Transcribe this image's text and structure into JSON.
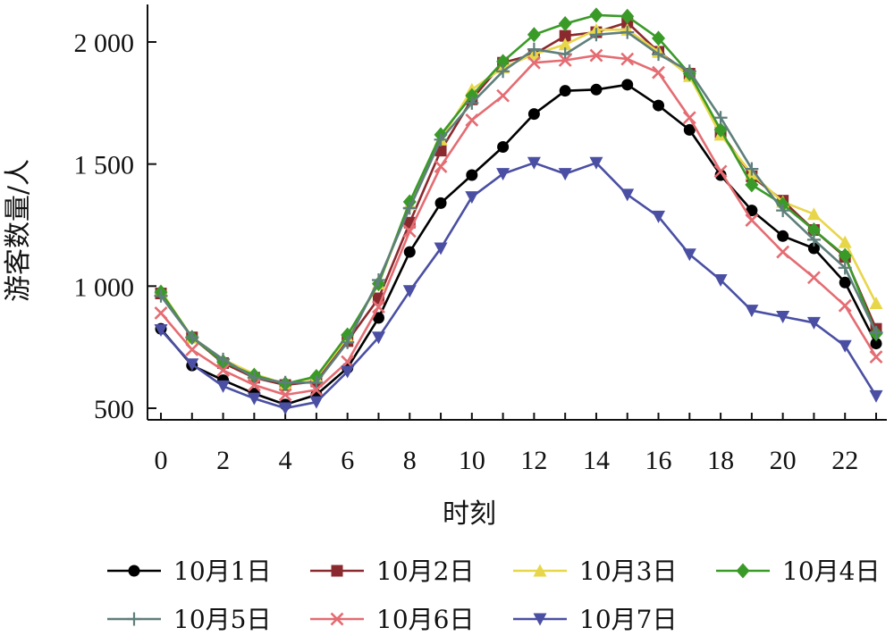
{
  "chart_data": {
    "type": "line",
    "title": "",
    "xlabel": "时刻",
    "ylabel": "游客数量/人",
    "xlim": [
      0,
      23
    ],
    "ylim": [
      460,
      2160
    ],
    "x": [
      0,
      1,
      2,
      3,
      4,
      5,
      6,
      7,
      8,
      9,
      10,
      11,
      12,
      13,
      14,
      15,
      16,
      17,
      18,
      19,
      20,
      21,
      22,
      23
    ],
    "x_ticks": [
      0,
      2,
      4,
      6,
      8,
      10,
      12,
      14,
      16,
      18,
      20,
      22
    ],
    "x_tick_labels": [
      "0",
      "2",
      "4",
      "6",
      "8",
      "10",
      "12",
      "14",
      "16",
      "18",
      "20",
      "22"
    ],
    "y_ticks": [
      500,
      1000,
      1500,
      2000
    ],
    "y_tick_labels": [
      "500",
      "1 000",
      "1 500",
      "2 000"
    ],
    "grid": false,
    "legend_position": "bottom",
    "series": [
      {
        "name": "10月1日",
        "color": "#000000",
        "marker": "circle",
        "values": [
          825,
          675,
          615,
          560,
          515,
          555,
          665,
          870,
          1140,
          1340,
          1455,
          1570,
          1705,
          1800,
          1805,
          1825,
          1740,
          1640,
          1455,
          1310,
          1205,
          1155,
          1015,
          765
        ]
      },
      {
        "name": "10月2日",
        "color": "#8B2A2E",
        "marker": "square",
        "values": [
          970,
          790,
          685,
          625,
          595,
          610,
          775,
          950,
          1260,
          1555,
          1765,
          1915,
          1950,
          2025,
          2040,
          2080,
          1960,
          1870,
          1630,
          1450,
          1350,
          1230,
          1120,
          825
        ]
      },
      {
        "name": "10月3日",
        "color": "#E8D64A",
        "marker": "triangle-up",
        "values": [
          980,
          790,
          700,
          640,
          600,
          625,
          790,
          1010,
          1335,
          1600,
          1805,
          1895,
          1950,
          1990,
          2050,
          2050,
          1960,
          1860,
          1620,
          1460,
          1345,
          1295,
          1180,
          930
        ]
      },
      {
        "name": "10月4日",
        "color": "#3A9A28",
        "marker": "diamond",
        "values": [
          975,
          790,
          690,
          635,
          600,
          630,
          800,
          1010,
          1345,
          1620,
          1780,
          1920,
          2030,
          2075,
          2110,
          2105,
          2015,
          1870,
          1640,
          1415,
          1335,
          1230,
          1125,
          805
        ]
      },
      {
        "name": "10月5日",
        "color": "#5E7F7B",
        "marker": "plus",
        "values": [
          960,
          790,
          700,
          625,
          605,
          605,
          770,
          1025,
          1320,
          1600,
          1750,
          1880,
          1970,
          1950,
          2030,
          2040,
          1950,
          1880,
          1690,
          1480,
          1310,
          1190,
          1075,
          810
        ]
      },
      {
        "name": "10月6日",
        "color": "#E46C72",
        "marker": "x",
        "values": [
          890,
          740,
          655,
          595,
          555,
          575,
          690,
          915,
          1225,
          1490,
          1680,
          1780,
          1915,
          1925,
          1945,
          1930,
          1875,
          1690,
          1470,
          1270,
          1140,
          1035,
          920,
          710
        ]
      },
      {
        "name": "10月7日",
        "color": "#4A4FA3",
        "marker": "triangle-down",
        "values": [
          820,
          680,
          590,
          540,
          500,
          525,
          650,
          790,
          980,
          1155,
          1365,
          1460,
          1505,
          1460,
          1505,
          1375,
          1285,
          1130,
          1025,
          900,
          875,
          850,
          755,
          550
        ]
      }
    ]
  }
}
